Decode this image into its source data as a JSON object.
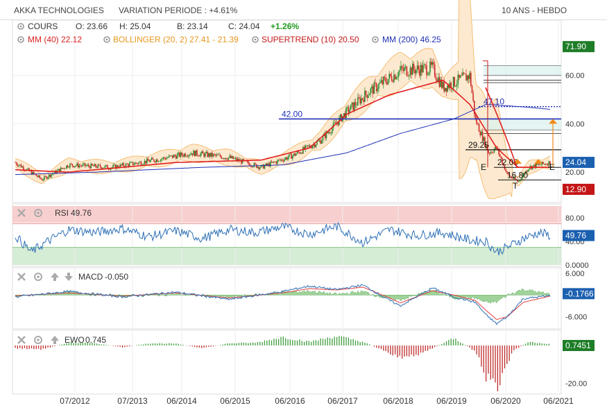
{
  "header": {
    "instrument": "AKKA TECHNOLOGIES",
    "variation": "VARIATION PERIODE : +4.61%",
    "period": "10 ANS - HEBDO"
  },
  "legend": {
    "cours_label": "COURS",
    "open": "O: 23.66",
    "high": "H: 25.04",
    "low": "B: 23.14",
    "close": "C: 24.04",
    "change": "+1.26%",
    "mm40": "MM (40) 22.12",
    "bollinger": "BOLLINGER (20, 2) 27.41 - 21.39",
    "supertrend": "SUPERTREND (10) 20.50",
    "mm200": "MM (200) 46.25"
  },
  "colors": {
    "up": "#2e8b2e",
    "down": "#cc2a2a",
    "mm40": "#e02020",
    "mm200": "#1f2fb5",
    "bollinger": "#f3b15b",
    "bollinger_fill": "#fde9cf",
    "rsi": "#2a6db5",
    "macd": "#2a6db5",
    "signal": "#e23c3c",
    "badge_green": "#1e7d27",
    "badge_red": "#c41616",
    "badge_blue": "#1c60b0"
  },
  "chart_data": [
    {
      "type": "line",
      "panel": "price",
      "title": "AKKA TECHNOLOGIES",
      "x_ticks": [
        "07/2012",
        "07/2013",
        "06/2014",
        "06/2015",
        "06/2016",
        "06/2017",
        "06/2018",
        "06/2019",
        "06/2020",
        "06/2021"
      ],
      "y_ticks": [
        "60.00",
        "40.00",
        "20.00"
      ],
      "ylim": [
        8,
        82
      ],
      "price_anchors": {
        "t": [
          0,
          0.05,
          0.1,
          0.18,
          0.26,
          0.33,
          0.4,
          0.46,
          0.52,
          0.57,
          0.62,
          0.66,
          0.72,
          0.78,
          0.8,
          0.85,
          0.86,
          0.885,
          0.9,
          0.92,
          0.94,
          0.96,
          0.98,
          1
        ],
        "v": [
          24,
          17,
          23,
          22,
          25,
          28,
          26,
          22,
          27,
          33,
          45,
          53,
          62,
          63,
          55,
          60,
          42,
          28,
          30,
          19,
          16,
          22,
          23,
          24
        ]
      },
      "mm40_anchors": {
        "t": [
          0,
          0.1,
          0.3,
          0.46,
          0.55,
          0.62,
          0.7,
          0.8,
          0.85,
          0.9,
          0.94,
          1
        ],
        "v": [
          21,
          20,
          24,
          25,
          30,
          44,
          52,
          58,
          48,
          30,
          22,
          22
        ]
      },
      "mm200_anchors": {
        "t": [
          0,
          0.15,
          0.35,
          0.5,
          0.62,
          0.72,
          0.82,
          0.88,
          0.95,
          1
        ],
        "v": [
          19,
          20,
          22,
          23,
          28,
          36,
          42,
          48,
          47,
          46
        ]
      },
      "levels": [
        {
          "label": "42.00",
          "value": 42.0,
          "color": "#1f2fb5"
        },
        {
          "label": "47.10",
          "value": 47.1,
          "color": "#1f2fb5"
        },
        {
          "label": "29.25",
          "value": 29.25,
          "color": "#111111"
        },
        {
          "label": "22.00",
          "value": 22.0,
          "color": "#111111"
        },
        {
          "label": "16.80",
          "value": 16.8,
          "color": "#111111"
        }
      ],
      "fibo_levels": [
        64,
        60,
        58,
        57,
        42,
        37.5,
        36
      ],
      "pattern_labels": [
        "E",
        "T",
        "E"
      ],
      "right_badges": [
        {
          "label": "71.90",
          "value": 71.9,
          "kind": "green"
        },
        {
          "label": "24.04",
          "value": 24.04,
          "kind": "blue"
        },
        {
          "label": "12.90",
          "value": 12.9,
          "kind": "red"
        }
      ]
    },
    {
      "type": "line",
      "panel": "rsi",
      "title": "RSI",
      "value_label": "49.76",
      "badge": "49.76",
      "y_ticks": [
        "80.00",
        "40.00",
        "0.0000"
      ],
      "ylim": [
        0,
        100
      ],
      "zones": {
        "overbought": 70,
        "oversold": 30
      },
      "anchors": {
        "t": [
          0,
          0.03,
          0.06,
          0.1,
          0.15,
          0.2,
          0.25,
          0.3,
          0.35,
          0.4,
          0.45,
          0.5,
          0.55,
          0.6,
          0.65,
          0.7,
          0.75,
          0.8,
          0.85,
          0.88,
          0.9,
          0.92,
          0.95,
          0.98,
          1
        ],
        "v": [
          50,
          22,
          40,
          60,
          55,
          62,
          48,
          58,
          45,
          60,
          55,
          65,
          52,
          66,
          38,
          60,
          50,
          55,
          42,
          40,
          22,
          30,
          45,
          55,
          50
        ]
      }
    },
    {
      "type": "line",
      "panel": "macd",
      "title": "MACD",
      "value_label": "-0.050",
      "badge": "-0.1766",
      "y_ticks": [
        "6.000",
        "-6.000"
      ],
      "ylim": [
        -9,
        7
      ],
      "macd_anchors": {
        "t": [
          0,
          0.1,
          0.2,
          0.3,
          0.4,
          0.5,
          0.55,
          0.6,
          0.65,
          0.7,
          0.72,
          0.78,
          0.82,
          0.86,
          0.88,
          0.9,
          0.92,
          0.95,
          1
        ],
        "v": [
          -0.5,
          1,
          -0.5,
          0.8,
          -1.2,
          1,
          2.5,
          1.5,
          2.8,
          -1.5,
          -3,
          2,
          -0.5,
          -2,
          -5.5,
          -8,
          -6,
          -1,
          -0.2
        ]
      },
      "signal_anchors": {
        "t": [
          0,
          0.1,
          0.2,
          0.3,
          0.4,
          0.5,
          0.55,
          0.6,
          0.65,
          0.7,
          0.72,
          0.78,
          0.82,
          0.86,
          0.88,
          0.9,
          0.92,
          0.95,
          1
        ],
        "v": [
          -0.2,
          0.6,
          -0.3,
          0.6,
          -0.8,
          0.6,
          1.8,
          1.4,
          2.2,
          -0.8,
          -2.2,
          1.2,
          0,
          -1.5,
          -4.2,
          -6.8,
          -6,
          -2,
          -0.3
        ]
      }
    },
    {
      "type": "bar",
      "panel": "ewo",
      "title": "EWO",
      "value_label": "0.745",
      "badge": "0.7451",
      "y_ticks": [
        "-20.00"
      ],
      "ylim": [
        -25,
        7
      ],
      "anchors": {
        "t": [
          0,
          0.05,
          0.1,
          0.15,
          0.2,
          0.25,
          0.3,
          0.35,
          0.4,
          0.45,
          0.5,
          0.55,
          0.6,
          0.65,
          0.7,
          0.73,
          0.78,
          0.82,
          0.86,
          0.88,
          0.9,
          0.93,
          0.96,
          1
        ],
        "v": [
          -1.5,
          -2,
          1.5,
          1.2,
          -1,
          1.2,
          1,
          -1.5,
          1.2,
          1.5,
          4.5,
          2,
          5,
          2,
          -4,
          -7,
          -1.5,
          4,
          -3,
          -16,
          -24,
          -3,
          2,
          0.8
        ]
      }
    }
  ]
}
